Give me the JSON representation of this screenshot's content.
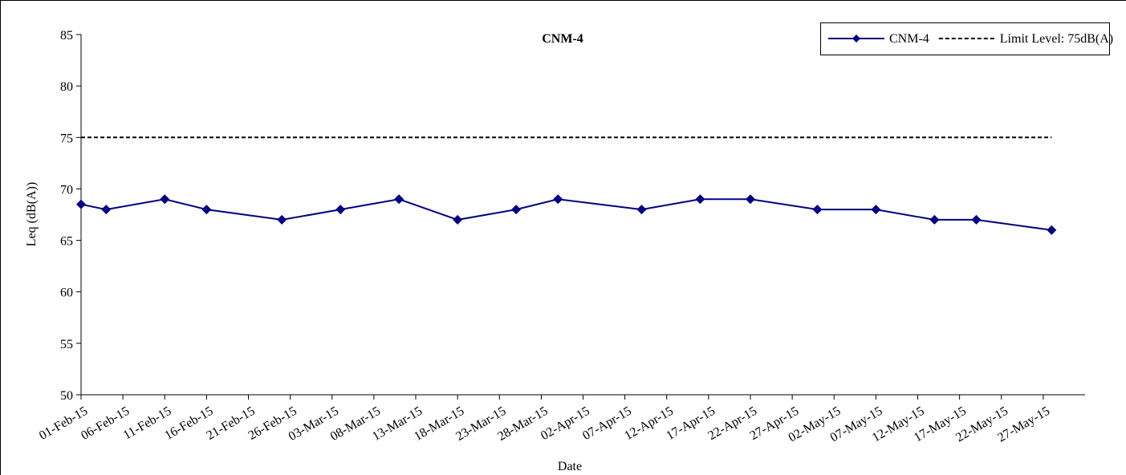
{
  "chart_data": {
    "type": "line",
    "title": "CNM-4",
    "x_label": "Date",
    "y_label": "Leq (dB(A))",
    "x": [
      "2015-02-01",
      "2015-02-04",
      "2015-02-11",
      "2015-02-16",
      "2015-02-25",
      "2015-03-04",
      "2015-03-11",
      "2015-03-18",
      "2015-03-25",
      "2015-03-30",
      "2015-04-09",
      "2015-04-16",
      "2015-04-22",
      "2015-04-30",
      "2015-05-07",
      "2015-05-14",
      "2015-05-19",
      "2015-05-28"
    ],
    "series": [
      {
        "name": "CNM-4",
        "color": "#000080",
        "marker": "diamond",
        "dashed": false,
        "values": [
          68.5,
          68,
          69,
          68,
          67,
          68,
          69,
          67,
          68,
          69,
          68,
          69,
          69,
          68,
          68,
          67,
          67,
          66
        ]
      },
      {
        "name": "Limit Level: 75dB(A)",
        "color": "#000000",
        "marker": "none",
        "dashed": true,
        "values": [
          75,
          75,
          75,
          75,
          75,
          75,
          75,
          75,
          75,
          75,
          75,
          75,
          75,
          75,
          75,
          75,
          75,
          75
        ]
      }
    ],
    "xlim": [
      "2015-02-01",
      "2015-06-01"
    ],
    "xticks": [
      {
        "value": "2015-02-01",
        "label": "01-Feb-15"
      },
      {
        "value": "2015-02-06",
        "label": "06-Feb-15"
      },
      {
        "value": "2015-02-11",
        "label": "11-Feb-15"
      },
      {
        "value": "2015-02-16",
        "label": "16-Feb-15"
      },
      {
        "value": "2015-02-21",
        "label": "21-Feb-15"
      },
      {
        "value": "2015-02-26",
        "label": "26-Feb-15"
      },
      {
        "value": "2015-03-03",
        "label": "03-Mar-15"
      },
      {
        "value": "2015-03-08",
        "label": "08-Mar-15"
      },
      {
        "value": "2015-03-13",
        "label": "13-Mar-15"
      },
      {
        "value": "2015-03-18",
        "label": "18-Mar-15"
      },
      {
        "value": "2015-03-23",
        "label": "23-Mar-15"
      },
      {
        "value": "2015-03-28",
        "label": "28-Mar-15"
      },
      {
        "value": "2015-04-02",
        "label": "02-Apr-15"
      },
      {
        "value": "2015-04-07",
        "label": "07-Apr-15"
      },
      {
        "value": "2015-04-12",
        "label": "12-Apr-15"
      },
      {
        "value": "2015-04-17",
        "label": "17-Apr-15"
      },
      {
        "value": "2015-04-22",
        "label": "22-Apr-15"
      },
      {
        "value": "2015-04-27",
        "label": "27-Apr-15"
      },
      {
        "value": "2015-05-02",
        "label": "02-May-15"
      },
      {
        "value": "2015-05-07",
        "label": "07-May-15"
      },
      {
        "value": "2015-05-12",
        "label": "12-May-15"
      },
      {
        "value": "2015-05-17",
        "label": "17-May-15"
      },
      {
        "value": "2015-05-22",
        "label": "22-May-15"
      },
      {
        "value": "2015-05-27",
        "label": "27-May-15"
      }
    ],
    "ylim": [
      50,
      85
    ],
    "yticks": [
      50,
      55,
      60,
      65,
      70,
      75,
      80,
      85
    ],
    "grid": false,
    "legend": "top-right"
  }
}
